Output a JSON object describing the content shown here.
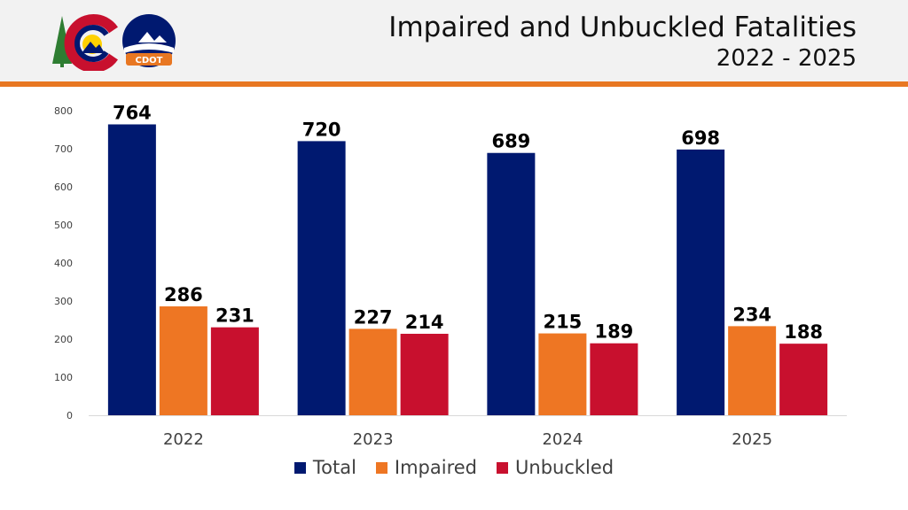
{
  "header": {
    "title_line1": "Impaired and Unbuckled Fatalities",
    "title_line2": "2022 - 2025",
    "logo_text": "CDOT",
    "accent_color": "#e87722"
  },
  "chart_data": {
    "type": "bar",
    "categories": [
      "2022",
      "2023",
      "2024",
      "2025"
    ],
    "series": [
      {
        "name": "Total",
        "values": [
          764,
          720,
          689,
          698
        ],
        "color": "#001970"
      },
      {
        "name": "Impaired",
        "values": [
          286,
          227,
          215,
          234
        ],
        "color": "#ee7623"
      },
      {
        "name": "Unbuckled",
        "values": [
          231,
          214,
          189,
          188
        ],
        "color": "#c8102e"
      }
    ],
    "yticks": [
      "0",
      "100",
      "200",
      "300",
      "400",
      "500",
      "600",
      "700",
      "800"
    ],
    "ylim": [
      0,
      800
    ],
    "grid": false,
    "legend_position": "bottom"
  }
}
